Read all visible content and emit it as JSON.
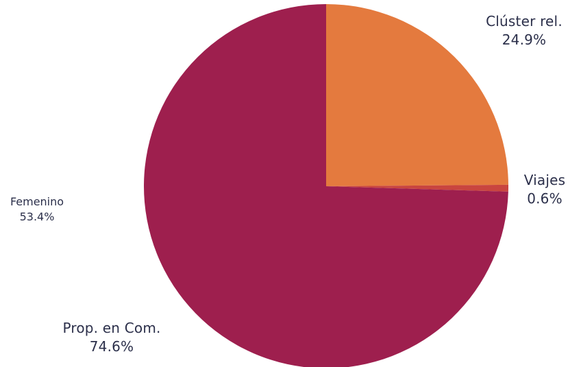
{
  "chart_data": {
    "type": "pie",
    "slices": [
      {
        "label": "Clúster rel.",
        "value": 24.9,
        "display": "24.9%",
        "color": "#e47a3e"
      },
      {
        "label": "Viajes",
        "value": 0.6,
        "display": "0.6%",
        "color": "#c9453f"
      },
      {
        "label": "Prop. en Com.",
        "value": 74.6,
        "display": "74.6%",
        "color": "#9e1f4e"
      }
    ],
    "extra_label": {
      "label": "Femenino",
      "display": "53.4%"
    },
    "start": "12 o'clock",
    "direction": "clockwise",
    "legend": "none"
  }
}
